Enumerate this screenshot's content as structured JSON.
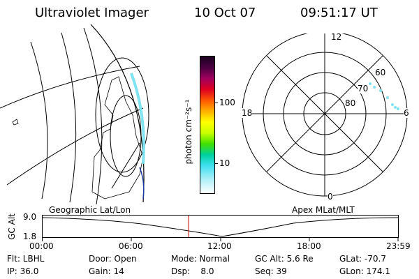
{
  "header": {
    "instrument": "Ultraviolet Imager",
    "date": "10 Oct 07",
    "time": "09:51:17 UT"
  },
  "colorbar": {
    "unit_label": "photon cm⁻²s⁻¹",
    "ticks": [
      "100",
      "10"
    ]
  },
  "polar_plot": {
    "mlt_labels": [
      "12",
      "18",
      "6",
      "0"
    ],
    "mlat_labels": [
      "60",
      "70",
      "80"
    ]
  },
  "timeline": {
    "left_caption": "Geographic Lat/Lon",
    "right_caption": "Apex MLat/MLT",
    "y_axis_label": "GC Alt",
    "y_ticks": [
      "9.0",
      "1.8"
    ],
    "x_ticks": [
      "00:00",
      "06:00",
      "12:00",
      "18:00",
      "23:59"
    ],
    "current_time_marker": "09:51"
  },
  "status": {
    "row1": [
      "Flt: LBHL",
      "Door: Open",
      "Mode: Normal",
      "GC Alt: 5.6 Re",
      "GLat: -70.7"
    ],
    "row2": [
      "IP: 36.0",
      "Gain: 14",
      "Dsp:    8.0",
      "Seq: 39",
      "GLon: 174.1"
    ]
  },
  "colors": {
    "marker": "#d00000",
    "aurora": "#7fe3f0"
  }
}
